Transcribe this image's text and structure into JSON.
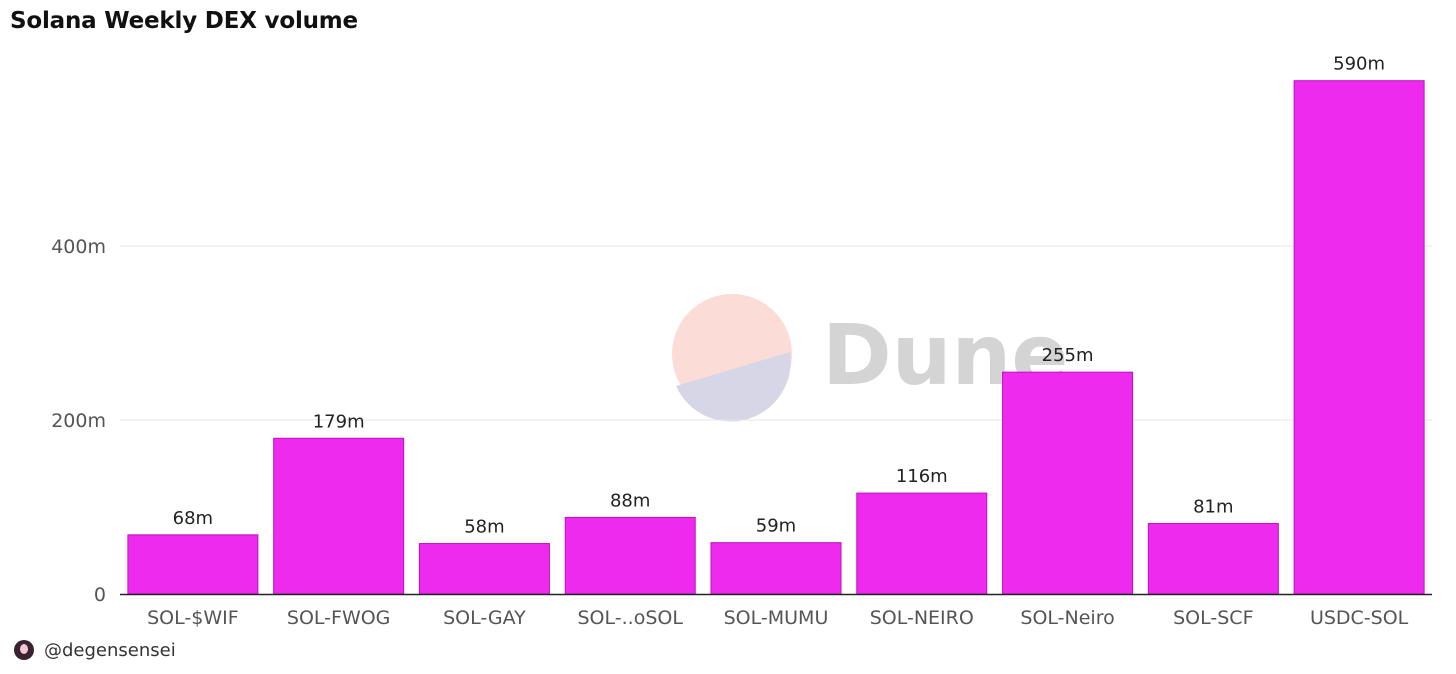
{
  "header": {
    "title": "Solana Weekly DEX volume"
  },
  "watermark": {
    "text": "Dune"
  },
  "footer": {
    "handle": "@degensensei",
    "avatar_icon": "user-avatar-icon"
  },
  "colors": {
    "bar": "#ee2aee",
    "bar_stroke": "#c010c0",
    "grid": "#e6e6e6",
    "axis_text": "#555555",
    "label_text": "#222222",
    "logo_top": "#fbdcd6",
    "logo_bottom": "#d6d6e6",
    "watermark_text": "#d4d4d4"
  },
  "chart_data": {
    "type": "bar",
    "title": "Solana Weekly DEX volume",
    "xlabel": "",
    "ylabel": "",
    "categories": [
      "SOL-$WIF",
      "SOL-FWOG",
      "SOL-GAY",
      "SOL-..oSOL",
      "SOL-MUMU",
      "SOL-NEIRO",
      "SOL-Neiro",
      "SOL-SCF",
      "USDC-SOL"
    ],
    "values": [
      68,
      179,
      58,
      88,
      59,
      116,
      255,
      81,
      590
    ],
    "value_labels": [
      "68m",
      "179m",
      "58m",
      "88m",
      "59m",
      "116m",
      "255m",
      "81m",
      "590m"
    ],
    "unit": "m",
    "yticks": [
      0,
      200,
      400
    ],
    "ytick_labels": [
      "0",
      "200m",
      "400m"
    ],
    "ylim": [
      0,
      610
    ],
    "grid": true,
    "legend": "none"
  }
}
